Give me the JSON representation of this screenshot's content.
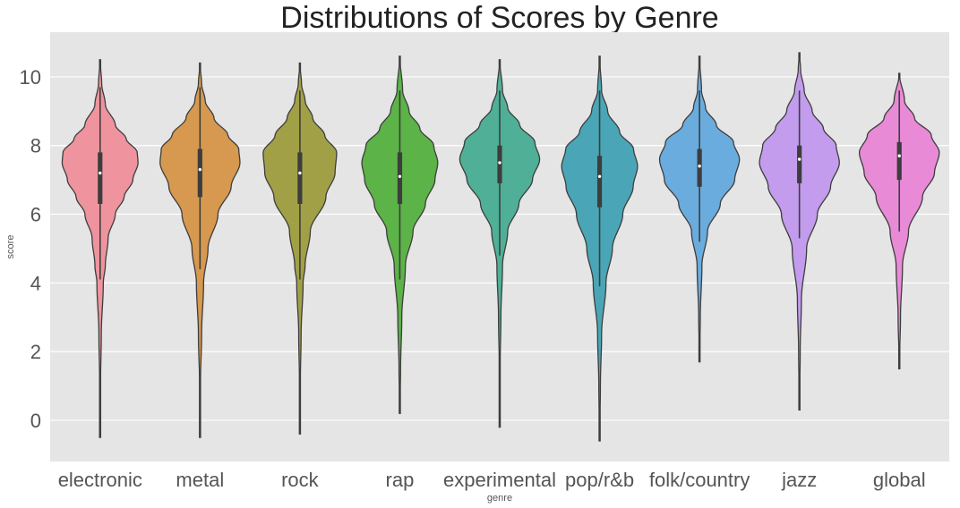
{
  "chart_data": {
    "type": "violin",
    "title": "Distributions of Scores by Genre",
    "xlabel": "genre",
    "ylabel": "score",
    "ylim": [
      -1.2,
      11.3
    ],
    "yticks": [
      0,
      2,
      4,
      6,
      8,
      10
    ],
    "grid": true,
    "background": "#e5e5e5",
    "grid_color": "#ffffff",
    "outline_color": "#3d3d3d",
    "categories": [
      "electronic",
      "metal",
      "rock",
      "rap",
      "experimental",
      "pop/r&b",
      "folk/country",
      "jazz",
      "global"
    ],
    "series": [
      {
        "category": "electronic",
        "color": "#ef949e",
        "min": -0.5,
        "whisker_low": 4.1,
        "q1": 6.3,
        "median": 7.2,
        "q3": 7.8,
        "whisker_high": 9.7,
        "max": 10.5,
        "density": [
          [
            -0.5,
            0
          ],
          [
            1,
            0.01
          ],
          [
            2.5,
            0.03
          ],
          [
            4,
            0.08
          ],
          [
            4.5,
            0.13
          ],
          [
            5.3,
            0.2
          ],
          [
            6,
            0.38
          ],
          [
            6.5,
            0.6
          ],
          [
            7,
            0.82
          ],
          [
            7.5,
            0.95
          ],
          [
            7.8,
            0.93
          ],
          [
            8.2,
            0.65
          ],
          [
            8.6,
            0.38
          ],
          [
            9.2,
            0.13
          ],
          [
            9.8,
            0.04
          ],
          [
            10.5,
            0
          ]
        ]
      },
      {
        "category": "metal",
        "color": "#d7994f",
        "min": -0.5,
        "whisker_low": 4.4,
        "q1": 6.5,
        "median": 7.3,
        "q3": 7.9,
        "whisker_high": 9.7,
        "max": 10.4,
        "density": [
          [
            -0.5,
            0
          ],
          [
            1,
            0.01
          ],
          [
            2.5,
            0.04
          ],
          [
            4,
            0.09
          ],
          [
            5,
            0.2
          ],
          [
            6,
            0.45
          ],
          [
            6.8,
            0.78
          ],
          [
            7.5,
            1.0
          ],
          [
            7.9,
            0.97
          ],
          [
            8.3,
            0.7
          ],
          [
            8.8,
            0.35
          ],
          [
            9.3,
            0.13
          ],
          [
            9.8,
            0.04
          ],
          [
            10.4,
            0
          ]
        ]
      },
      {
        "category": "rock",
        "color": "#a1a047",
        "min": -0.4,
        "whisker_low": 4.1,
        "q1": 6.3,
        "median": 7.2,
        "q3": 7.8,
        "whisker_high": 9.6,
        "max": 10.4,
        "density": [
          [
            -0.4,
            0
          ],
          [
            1,
            0.01
          ],
          [
            2.5,
            0.03
          ],
          [
            4,
            0.08
          ],
          [
            4.5,
            0.13
          ],
          [
            5.5,
            0.26
          ],
          [
            6.5,
            0.65
          ],
          [
            7.2,
            0.88
          ],
          [
            7.8,
            0.92
          ],
          [
            8.3,
            0.62
          ],
          [
            8.8,
            0.32
          ],
          [
            9.3,
            0.13
          ],
          [
            9.8,
            0.04
          ],
          [
            10.4,
            0
          ]
        ]
      },
      {
        "category": "rap",
        "color": "#5cb347",
        "min": 0.2,
        "whisker_low": 4.1,
        "q1": 6.3,
        "median": 7.1,
        "q3": 7.8,
        "whisker_high": 9.6,
        "max": 10.6,
        "density": [
          [
            0.2,
            0
          ],
          [
            1.5,
            0.02
          ],
          [
            3,
            0.05
          ],
          [
            4.5,
            0.14
          ],
          [
            5.5,
            0.33
          ],
          [
            6.3,
            0.64
          ],
          [
            7,
            0.88
          ],
          [
            7.5,
            0.95
          ],
          [
            8,
            0.85
          ],
          [
            8.5,
            0.5
          ],
          [
            9,
            0.23
          ],
          [
            9.6,
            0.07
          ],
          [
            10.6,
            0
          ]
        ]
      },
      {
        "category": "experimental",
        "color": "#4fb097",
        "min": -0.2,
        "whisker_low": 4.8,
        "q1": 6.9,
        "median": 7.5,
        "q3": 8.0,
        "whisker_high": 9.6,
        "max": 10.5,
        "density": [
          [
            -0.2,
            0
          ],
          [
            1.5,
            0.01
          ],
          [
            3,
            0.03
          ],
          [
            4.5,
            0.07
          ],
          [
            5.5,
            0.2
          ],
          [
            6.3,
            0.48
          ],
          [
            7,
            0.82
          ],
          [
            7.6,
            1.0
          ],
          [
            8.1,
            0.88
          ],
          [
            8.6,
            0.5
          ],
          [
            9.1,
            0.2
          ],
          [
            9.6,
            0.07
          ],
          [
            10.5,
            0
          ]
        ]
      },
      {
        "category": "pop/r&b",
        "color": "#4aa6b6",
        "min": -0.6,
        "whisker_low": 3.9,
        "q1": 6.2,
        "median": 7.1,
        "q3": 7.7,
        "whisker_high": 9.6,
        "max": 10.6,
        "density": [
          [
            -0.6,
            0
          ],
          [
            1,
            0.02
          ],
          [
            2.5,
            0.05
          ],
          [
            4,
            0.16
          ],
          [
            5,
            0.32
          ],
          [
            6,
            0.58
          ],
          [
            6.8,
            0.84
          ],
          [
            7.4,
            0.95
          ],
          [
            7.9,
            0.85
          ],
          [
            8.4,
            0.5
          ],
          [
            9,
            0.2
          ],
          [
            9.6,
            0.05
          ],
          [
            10.6,
            0
          ]
        ]
      },
      {
        "category": "folk/country",
        "color": "#6aacde",
        "min": 1.7,
        "whisker_low": 5.2,
        "q1": 6.8,
        "median": 7.4,
        "q3": 7.9,
        "whisker_high": 9.6,
        "max": 10.6,
        "density": [
          [
            1.7,
            0
          ],
          [
            3,
            0.02
          ],
          [
            4.5,
            0.06
          ],
          [
            5.5,
            0.2
          ],
          [
            6.3,
            0.52
          ],
          [
            7,
            0.88
          ],
          [
            7.6,
            1.0
          ],
          [
            8.1,
            0.85
          ],
          [
            8.6,
            0.42
          ],
          [
            9.1,
            0.15
          ],
          [
            9.6,
            0.05
          ],
          [
            10.6,
            0
          ]
        ]
      },
      {
        "category": "jazz",
        "color": "#c39ced",
        "min": 0.3,
        "whisker_low": 5.3,
        "q1": 6.9,
        "median": 7.6,
        "q3": 8.0,
        "whisker_high": 9.6,
        "max": 10.7,
        "density": [
          [
            0.3,
            0
          ],
          [
            2,
            0.02
          ],
          [
            3.5,
            0.05
          ],
          [
            5,
            0.18
          ],
          [
            6,
            0.45
          ],
          [
            6.8,
            0.78
          ],
          [
            7.5,
            1.0
          ],
          [
            8,
            0.92
          ],
          [
            8.5,
            0.6
          ],
          [
            9,
            0.32
          ],
          [
            9.6,
            0.12
          ],
          [
            10.2,
            0.03
          ],
          [
            10.7,
            0
          ]
        ]
      },
      {
        "category": "global",
        "color": "#e98ad7",
        "min": 1.5,
        "whisker_low": 5.5,
        "q1": 7.0,
        "median": 7.7,
        "q3": 8.1,
        "whisker_high": 9.6,
        "max": 10.1,
        "density": [
          [
            1.5,
            0
          ],
          [
            3,
            0.03
          ],
          [
            4.5,
            0.08
          ],
          [
            5.5,
            0.23
          ],
          [
            6.5,
            0.58
          ],
          [
            7.2,
            0.88
          ],
          [
            7.8,
            1.0
          ],
          [
            8.3,
            0.8
          ],
          [
            8.8,
            0.38
          ],
          [
            9.3,
            0.13
          ],
          [
            10.1,
            0
          ]
        ]
      }
    ]
  }
}
